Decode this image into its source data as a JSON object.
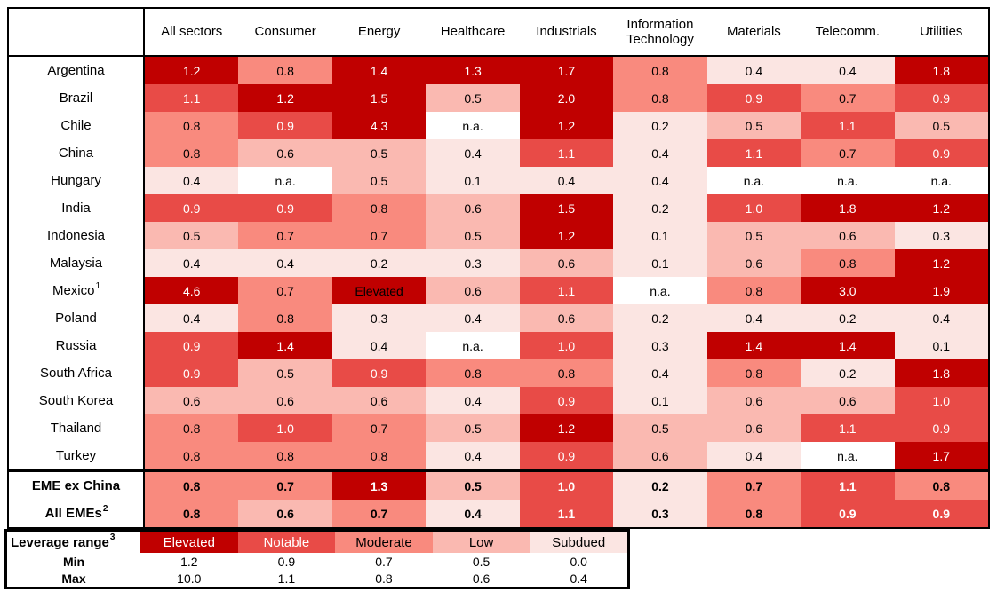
{
  "chart_data": {
    "type": "heatmap",
    "columns": [
      "All sectors",
      "Consumer",
      "Energy",
      "Healthcare",
      "Industrials",
      "Information Technology",
      "Materials",
      "Telecomm.",
      "Utilities"
    ],
    "rows": [
      {
        "label": "Argentina",
        "values": [
          "1.2",
          "0.8",
          "1.4",
          "1.3",
          "1.7",
          "0.8",
          "0.4",
          "0.4",
          "1.8"
        ]
      },
      {
        "label": "Brazil",
        "values": [
          "1.1",
          "1.2",
          "1.5",
          "0.5",
          "2.0",
          "0.8",
          "0.9",
          "0.7",
          "0.9"
        ]
      },
      {
        "label": "Chile",
        "values": [
          "0.8",
          "0.9",
          "4.3",
          "n.a.",
          "1.2",
          "0.2",
          "0.5",
          "1.1",
          "0.5"
        ]
      },
      {
        "label": "China",
        "values": [
          "0.8",
          "0.6",
          "0.5",
          "0.4",
          "1.1",
          "0.4",
          "1.1",
          "0.7",
          "0.9"
        ]
      },
      {
        "label": "Hungary",
        "values": [
          "0.4",
          "n.a.",
          "0.5",
          "0.1",
          "0.4",
          "0.4",
          "n.a.",
          "n.a.",
          "n.a."
        ]
      },
      {
        "label": "India",
        "values": [
          "0.9",
          "0.9",
          "0.8",
          "0.6",
          "1.5",
          "0.2",
          "1.0",
          "1.8",
          "1.2"
        ]
      },
      {
        "label": "Indonesia",
        "values": [
          "0.5",
          "0.7",
          "0.7",
          "0.5",
          "1.2",
          "0.1",
          "0.5",
          "0.6",
          "0.3"
        ]
      },
      {
        "label": "Malaysia",
        "values": [
          "0.4",
          "0.4",
          "0.2",
          "0.3",
          "0.6",
          "0.1",
          "0.6",
          "0.8",
          "1.2"
        ]
      },
      {
        "label": "Mexico",
        "sup": "1",
        "values": [
          "4.6",
          "0.7",
          "Elevated",
          "0.6",
          "1.1",
          "n.a.",
          "0.8",
          "3.0",
          "1.9"
        ]
      },
      {
        "label": "Poland",
        "values": [
          "0.4",
          "0.8",
          "0.3",
          "0.4",
          "0.6",
          "0.2",
          "0.4",
          "0.2",
          "0.4"
        ]
      },
      {
        "label": "Russia",
        "values": [
          "0.9",
          "1.4",
          "0.4",
          "n.a.",
          "1.0",
          "0.3",
          "1.4",
          "1.4",
          "0.1"
        ]
      },
      {
        "label": "South Africa",
        "values": [
          "0.9",
          "0.5",
          "0.9",
          "0.8",
          "0.8",
          "0.4",
          "0.8",
          "0.2",
          "1.8"
        ]
      },
      {
        "label": "South Korea",
        "values": [
          "0.6",
          "0.6",
          "0.6",
          "0.4",
          "0.9",
          "0.1",
          "0.6",
          "0.6",
          "1.0"
        ]
      },
      {
        "label": "Thailand",
        "values": [
          "0.8",
          "1.0",
          "0.7",
          "0.5",
          "1.2",
          "0.5",
          "0.6",
          "1.1",
          "0.9"
        ]
      },
      {
        "label": "Turkey",
        "values": [
          "0.8",
          "0.8",
          "0.8",
          "0.4",
          "0.9",
          "0.6",
          "0.4",
          "n.a.",
          "1.7"
        ]
      },
      {
        "label": "EME ex China",
        "bold": true,
        "values": [
          "0.8",
          "0.7",
          "1.3",
          "0.5",
          "1.0",
          "0.2",
          "0.7",
          "1.1",
          "0.8"
        ]
      },
      {
        "label": "All EMEs",
        "sup": "2",
        "bold": true,
        "values": [
          "0.8",
          "0.6",
          "0.7",
          "0.4",
          "1.1",
          "0.3",
          "0.8",
          "0.9",
          "0.9"
        ]
      }
    ],
    "legend": {
      "title": "Leverage range",
      "title_sup": "3",
      "min_label": "Min",
      "max_label": "Max",
      "na_label": "n.a.",
      "na_color": "#FFFFFF",
      "categories": [
        {
          "label": "Elevated",
          "min": "1.2",
          "max": "10.0",
          "color": "#C00000",
          "text_color": "#FFFFFF"
        },
        {
          "label": "Notable",
          "min": "0.9",
          "max": "1.1",
          "color": "#E84B47",
          "text_color": "#FFFFFF"
        },
        {
          "label": "Moderate",
          "min": "0.7",
          "max": "0.8",
          "color": "#F98A7E",
          "text_color": "#000000"
        },
        {
          "label": "Low",
          "min": "0.5",
          "max": "0.6",
          "color": "#FAB9B1",
          "text_color": "#000000"
        },
        {
          "label": "Subdued",
          "min": "0.0",
          "max": "0.4",
          "color": "#FBE5E2",
          "text_color": "#000000"
        }
      ]
    }
  }
}
